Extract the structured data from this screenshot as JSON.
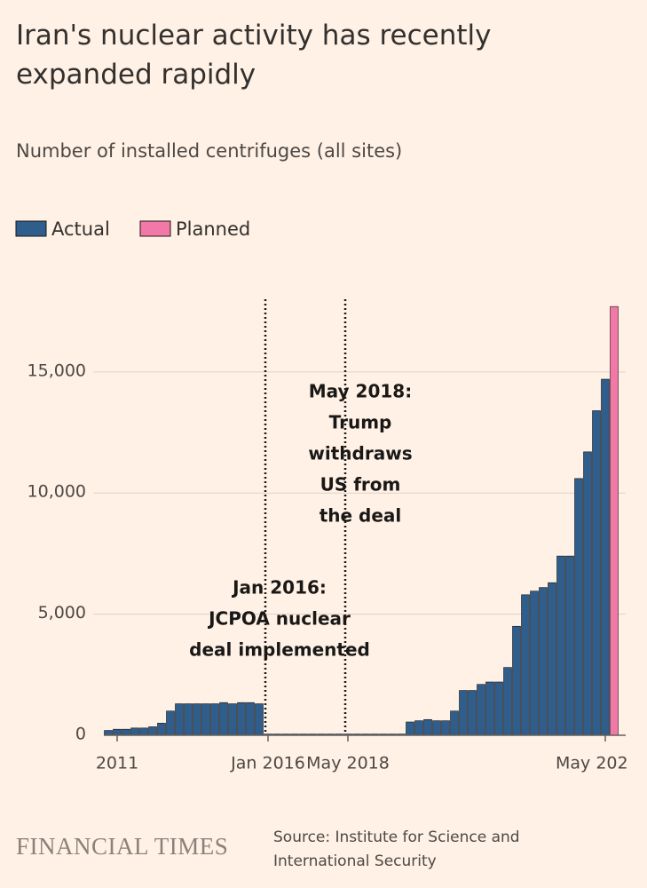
{
  "chart_data": {
    "type": "bar",
    "title": "Iran's nuclear activity has recently expanded rapidly",
    "subtitle": "Number of installed centrifuges (all sites)",
    "categories": [
      null,
      "2011",
      null,
      null,
      null,
      null,
      null,
      null,
      null,
      null,
      null,
      null,
      null,
      null,
      null,
      null,
      null,
      null,
      "Jan 2016",
      null,
      null,
      null,
      null,
      null,
      null,
      null,
      null,
      "May 2018",
      null,
      null,
      null,
      null,
      null,
      null,
      null,
      null,
      null,
      null,
      null,
      null,
      null,
      null,
      null,
      null,
      null,
      null,
      null,
      null,
      null,
      null,
      null,
      null,
      null,
      null,
      null,
      null,
      "May 202",
      null
    ],
    "series": [
      {
        "name": "Actual",
        "color": "#2f5d8c",
        "values": [
          200,
          250,
          250,
          300,
          300,
          350,
          500,
          1000,
          1300,
          1300,
          1300,
          1300,
          1300,
          1350,
          1300,
          1350,
          1350,
          1300,
          50,
          50,
          50,
          50,
          50,
          50,
          50,
          50,
          50,
          50,
          50,
          50,
          50,
          50,
          50,
          50,
          550,
          600,
          650,
          600,
          600,
          1000,
          1850,
          1850,
          2100,
          2200,
          2200,
          2800,
          4500,
          5800,
          5950,
          6100,
          6300,
          7400,
          7400,
          10600,
          11700,
          13400,
          14700,
          null
        ]
      },
      {
        "name": "Planned",
        "color": "#f279a7",
        "values": [
          null,
          null,
          null,
          null,
          null,
          null,
          null,
          null,
          null,
          null,
          null,
          null,
          null,
          null,
          null,
          null,
          null,
          null,
          null,
          null,
          null,
          null,
          null,
          null,
          null,
          null,
          null,
          null,
          null,
          null,
          null,
          null,
          null,
          null,
          null,
          null,
          null,
          null,
          null,
          null,
          null,
          null,
          null,
          null,
          null,
          null,
          null,
          null,
          null,
          null,
          null,
          null,
          null,
          null,
          null,
          null,
          null,
          17700
        ]
      }
    ],
    "ylim": [
      0,
      18000
    ],
    "yticks": [
      0,
      {
        "value": 5000,
        "label": "5,000"
      },
      {
        "value": 10000,
        "label": "10,000"
      },
      {
        "value": 15000,
        "label": "15,000"
      }
    ],
    "grid": true,
    "stacked": false,
    "annotations": [
      {
        "lines": [
          "Jan 2016:",
          "JCPOA nuclear",
          "deal implemented"
        ]
      },
      {
        "lines": [
          "May 2018:",
          "Trump",
          "withdraws",
          "US from",
          "the deal"
        ]
      }
    ],
    "brand": "FINANCIAL TIMES",
    "source": "Source: Institute for Science and International Security"
  }
}
